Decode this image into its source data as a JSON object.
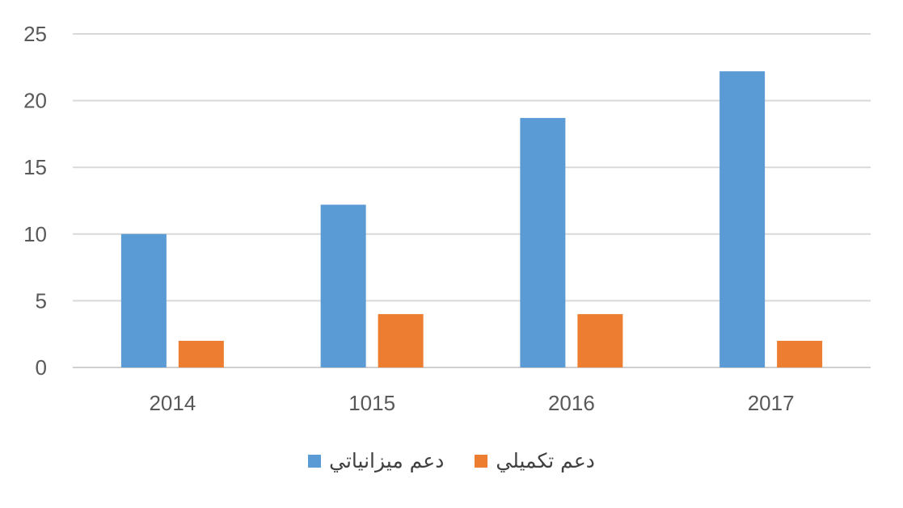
{
  "chart_data": {
    "type": "bar",
    "categories": [
      "2014",
      "1015",
      "2016",
      "2017"
    ],
    "series": [
      {
        "name": "دعم ميزانياتي",
        "values": [
          10,
          12.2,
          18.7,
          22.2
        ],
        "color": "#5B9BD5"
      },
      {
        "name": "دعم تكميلي",
        "values": [
          2,
          4,
          4,
          2
        ],
        "color": "#ED7D31"
      }
    ],
    "ylim": [
      0,
      25
    ],
    "yticks": [
      "0",
      "5",
      "10",
      "15",
      "20",
      "25"
    ],
    "grid": true,
    "legend_position": "bottom"
  }
}
